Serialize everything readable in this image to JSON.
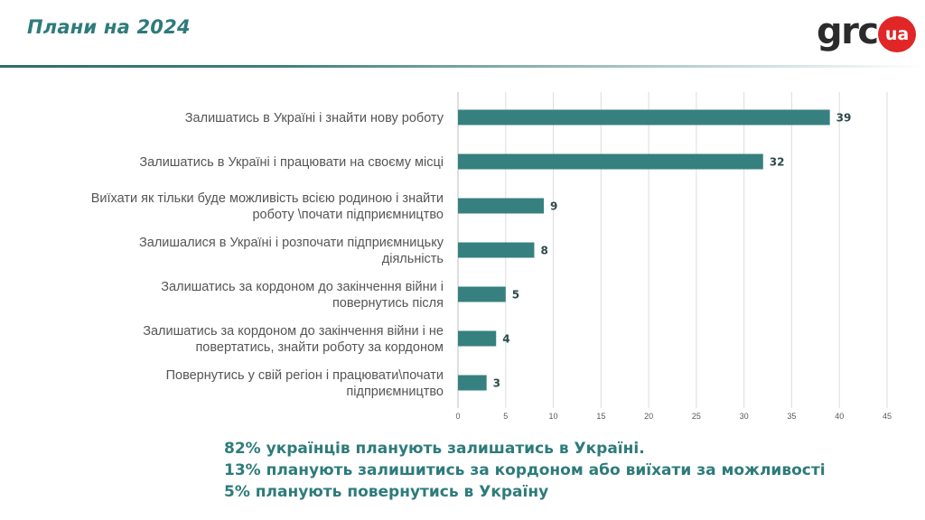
{
  "header": {
    "title": "Плани на 2024",
    "logo_text": "grc",
    "logo_badge": "ua"
  },
  "colors": {
    "accent": "#2e7b7b",
    "bar": "#36807f",
    "logo_red": "#e02626"
  },
  "chart_data": {
    "type": "bar",
    "orientation": "horizontal",
    "categories": [
      [
        "Залишатись в Україні і знайти нову роботу"
      ],
      [
        "Залишатись в Україні і працювати на своєму місці"
      ],
      [
        "Виїхати як тільки буде можливість всією родиною і знайти",
        "роботу \\почати підприємництво"
      ],
      [
        "Залишалися в Україні  і розпочати підприємницьку",
        "діяльність"
      ],
      [
        "Залишатись за кордоном до закінчення війни і",
        "повернутись після"
      ],
      [
        "Залишатись за кордоном до закінчення війни і  не",
        "повертатись, знайти роботу за кордоном"
      ],
      [
        "Повернутись у свій регіон і працювати\\почати",
        "підприємництво"
      ]
    ],
    "values": [
      39,
      32,
      9,
      8,
      5,
      4,
      3
    ],
    "xlim": [
      0,
      45
    ],
    "ticks": [
      0,
      5,
      10,
      15,
      20,
      25,
      30,
      35,
      40,
      45
    ],
    "grid": true,
    "data_labels": true,
    "title": "",
    "xlabel": "",
    "ylabel": ""
  },
  "summary": [
    "82% українців планують залишатись в Україні.",
    "13% планують залишитись за кордоном або виїхати за можливості",
    "5% планують повернутись в Україну"
  ]
}
